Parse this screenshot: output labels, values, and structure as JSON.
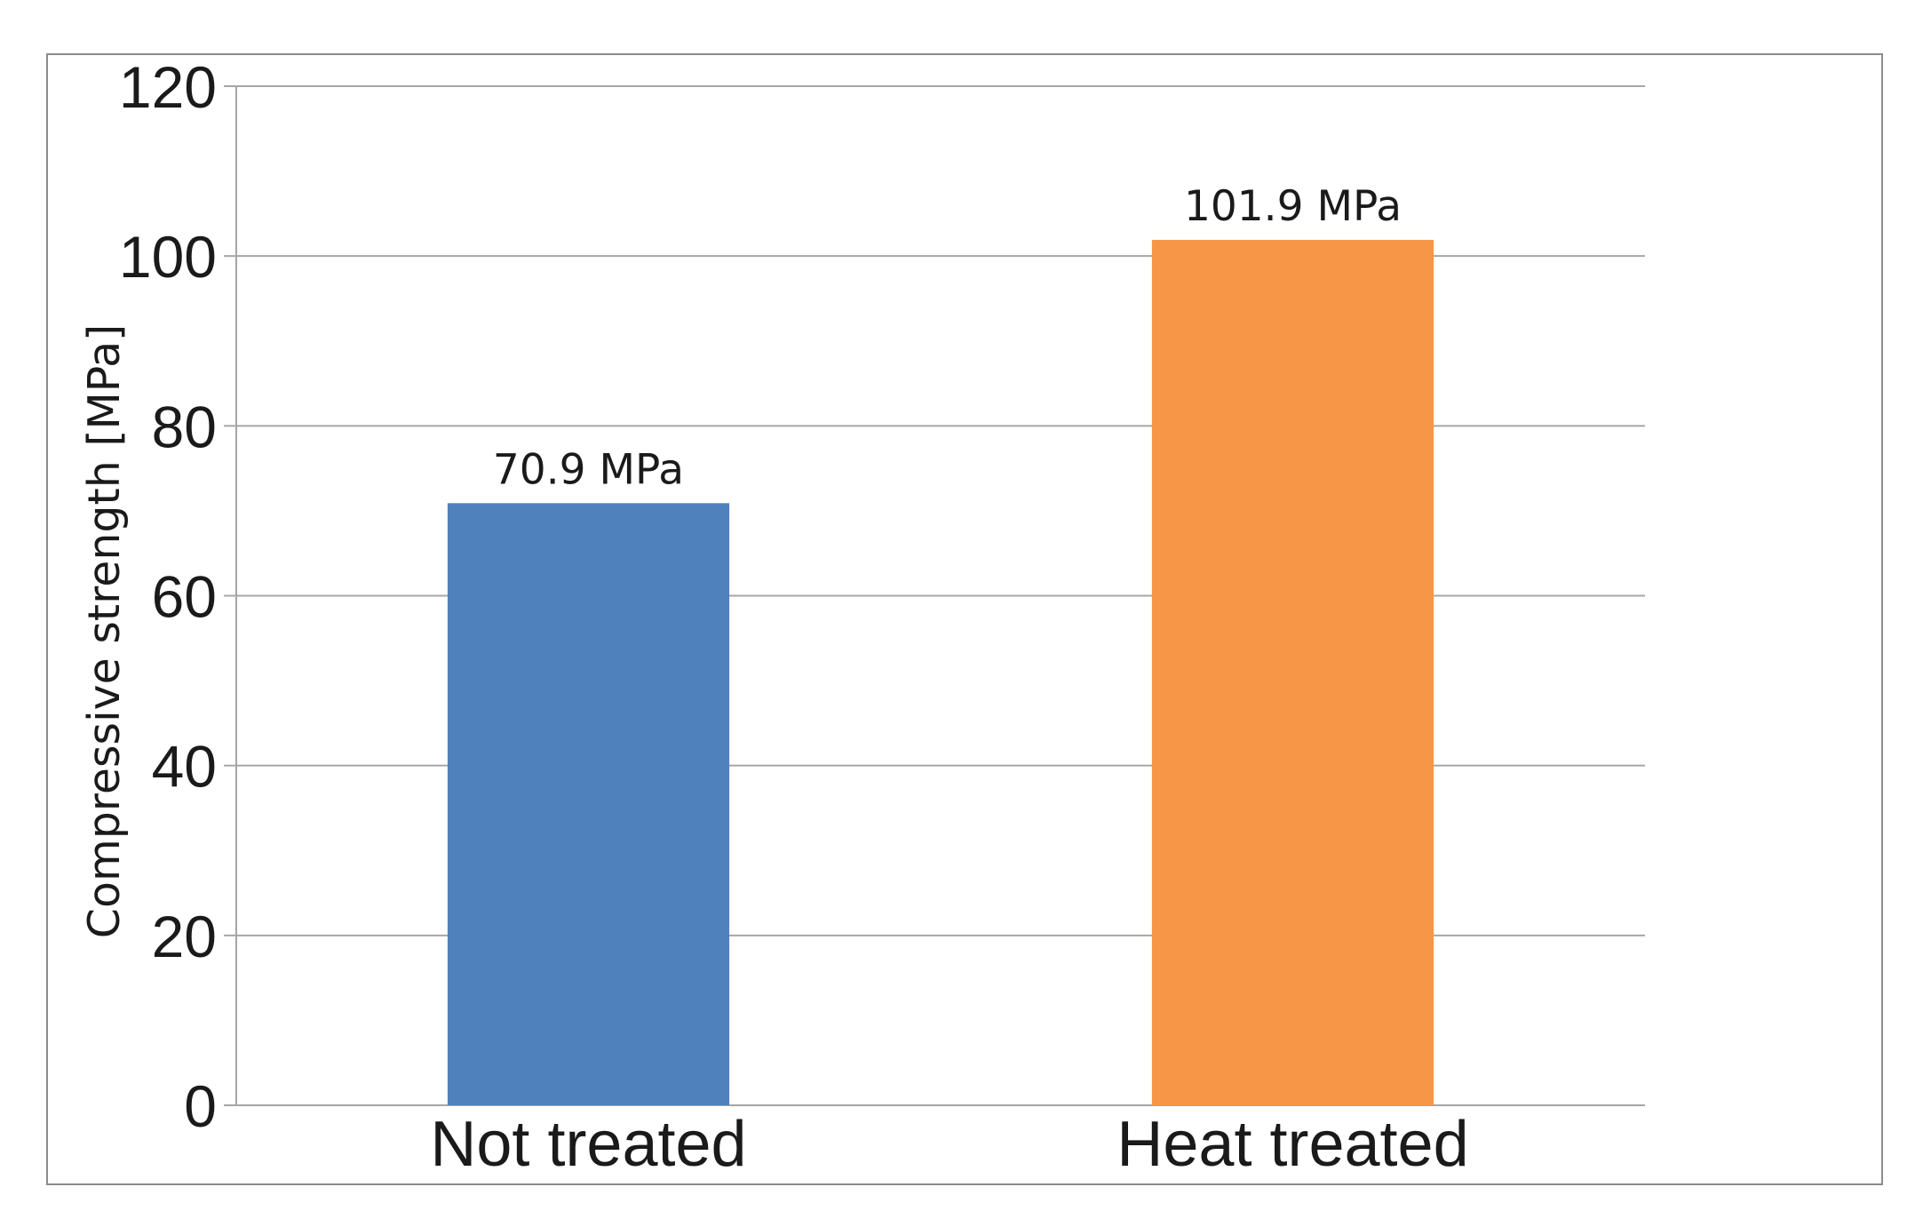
{
  "chart_data": {
    "type": "bar",
    "title": "",
    "xlabel": "",
    "ylabel": "Compressive strength [MPa]",
    "categories": [
      "Not treated",
      "Heat treated"
    ],
    "values": [
      70.9,
      101.9
    ],
    "data_labels": [
      "70.9 MPa",
      "101.9 MPa"
    ],
    "bar_colors": [
      "#4f81bd",
      "#f79646"
    ],
    "ylim": [
      0,
      120
    ],
    "yticks": [
      0,
      20,
      40,
      60,
      80,
      100,
      120
    ],
    "grid": true,
    "legend": "none",
    "gridline_color": "#a6a6a6",
    "frame_color": "#8c8c8c"
  }
}
